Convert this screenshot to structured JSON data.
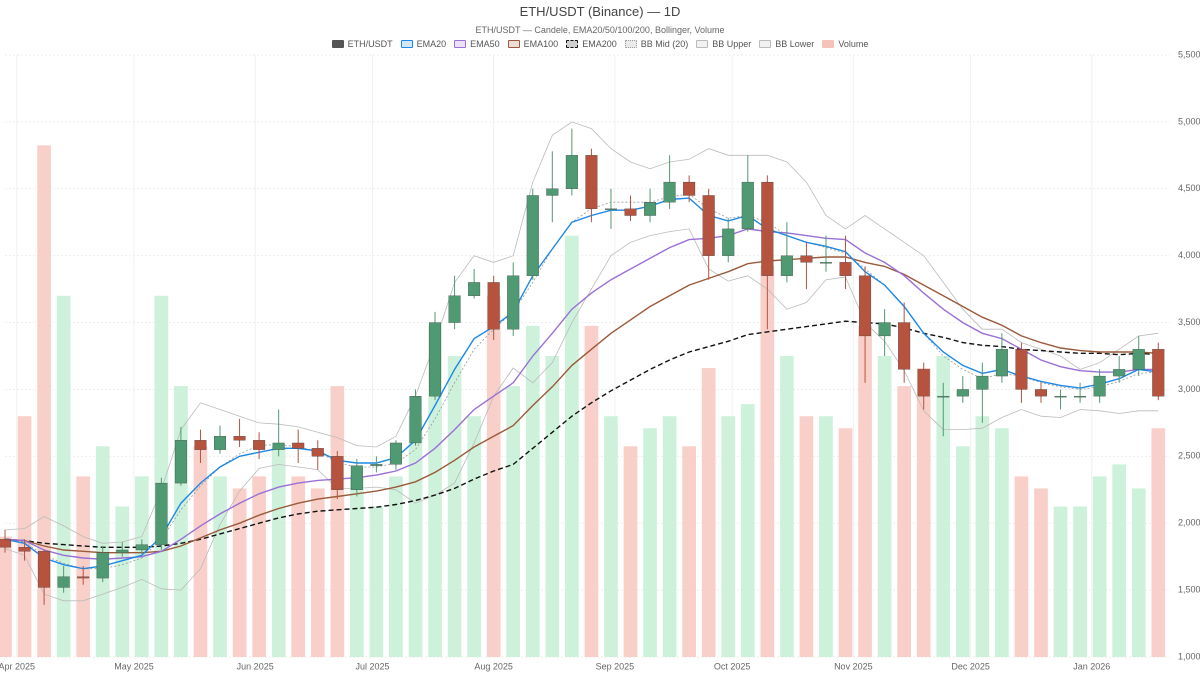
{
  "chart_data": {
    "type": "candlestick",
    "title": "ETH/USDT (Binance) — 1D",
    "subtitle": "ETH/USDT — Candele, EMA20/50/100/200, Bollinger, Volume",
    "x": [
      0,
      5,
      10,
      15,
      20,
      25,
      30,
      35,
      40,
      45,
      50,
      55,
      60,
      65,
      70,
      75,
      80,
      85,
      90,
      95,
      100,
      105,
      110,
      115,
      120,
      125,
      130,
      135,
      140,
      145,
      150,
      155,
      160,
      165,
      170,
      175,
      180,
      185,
      190,
      195,
      200,
      205,
      210,
      215,
      220,
      225,
      230,
      235,
      240,
      245,
      250,
      255,
      260,
      265,
      270,
      275,
      280,
      285,
      290,
      295
    ],
    "xlim": [
      0,
      298
    ],
    "xticks": [
      {
        "value": 3,
        "label": "Apr 2025"
      },
      {
        "value": 33,
        "label": "May 2025"
      },
      {
        "value": 64,
        "label": "Jun 2025"
      },
      {
        "value": 94,
        "label": "Jul 2025"
      },
      {
        "value": 125,
        "label": "Aug 2025"
      },
      {
        "value": 156,
        "label": "Sep 2025"
      },
      {
        "value": 186,
        "label": "Oct 2025"
      },
      {
        "value": 217,
        "label": "Nov 2025"
      },
      {
        "value": 247,
        "label": "Dec 2025"
      },
      {
        "value": 278,
        "label": "Jan 2026"
      }
    ],
    "ylim": [
      1000,
      5500
    ],
    "yticks": [
      {
        "value": 1000,
        "label": "1,000"
      },
      {
        "value": 1500,
        "label": "1,500"
      },
      {
        "value": 2000,
        "label": "2,000"
      },
      {
        "value": 2500,
        "label": "2,500"
      },
      {
        "value": 3000,
        "label": "3,000"
      },
      {
        "value": 3500,
        "label": "3,500"
      },
      {
        "value": 4000,
        "label": "4,000"
      },
      {
        "value": 4500,
        "label": "4,500"
      },
      {
        "value": 5000,
        "label": "5,000"
      },
      {
        "value": 5500,
        "label": "5,500"
      }
    ],
    "grid": true,
    "candles": {
      "name": "ETH/USDT",
      "color": "#555555",
      "up_color": "#4f9a72",
      "down_color": "#b5533f",
      "open": [
        1880,
        1820,
        1790,
        1520,
        1600,
        1590,
        1780,
        1800,
        1840,
        2300,
        2620,
        2550,
        2650,
        2620,
        2550,
        2600,
        2560,
        2500,
        2250,
        2430,
        2440,
        2600,
        2950,
        3500,
        3700,
        3800,
        3450,
        3850,
        4450,
        4500,
        4750,
        4350,
        4350,
        4300,
        4400,
        4550,
        4450,
        4000,
        4200,
        4550,
        3850,
        4000,
        3950,
        3950,
        3850,
        3400,
        3500,
        3150,
        2950,
        2950,
        3000,
        3100,
        3300,
        3000,
        2950,
        2950,
        2950,
        3100,
        3150,
        3300
      ],
      "high": [
        1950,
        1880,
        1800,
        1680,
        1680,
        1830,
        1860,
        1880,
        2340,
        2720,
        2700,
        2730,
        2780,
        2680,
        2850,
        2700,
        2620,
        2540,
        2480,
        2500,
        2620,
        3000,
        3580,
        3850,
        3900,
        3850,
        3950,
        4500,
        4780,
        4950,
        4800,
        4500,
        4450,
        4500,
        4750,
        4600,
        4500,
        4280,
        4750,
        4600,
        4250,
        4100,
        4150,
        4150,
        3920,
        3600,
        3650,
        3200,
        3050,
        3100,
        3200,
        3420,
        3350,
        3050,
        3000,
        3050,
        3150,
        3250,
        3400,
        3350
      ],
      "low": [
        1780,
        1720,
        1390,
        1480,
        1540,
        1560,
        1750,
        1770,
        1800,
        2280,
        2450,
        2520,
        2570,
        2480,
        2500,
        2450,
        2400,
        2180,
        2200,
        2380,
        2400,
        2580,
        2920,
        3450,
        3680,
        3370,
        3400,
        3820,
        4250,
        4450,
        4250,
        4200,
        4260,
        4250,
        4350,
        4400,
        3820,
        3950,
        4180,
        3450,
        3800,
        3750,
        3880,
        3750,
        3050,
        3250,
        3050,
        2850,
        2650,
        2900,
        2750,
        3050,
        2900,
        2900,
        2850,
        2900,
        2900,
        3050,
        3100,
        2920
      ],
      "close": [
        1820,
        1790,
        1520,
        1600,
        1590,
        1780,
        1800,
        1840,
        2300,
        2620,
        2550,
        2650,
        2620,
        2550,
        2600,
        2560,
        2500,
        2250,
        2430,
        2440,
        2600,
        2950,
        3500,
        3700,
        3800,
        3450,
        3850,
        4450,
        4500,
        4750,
        4350,
        4350,
        4300,
        4400,
        4550,
        4450,
        4000,
        4200,
        4550,
        3850,
        4000,
        3950,
        3950,
        3850,
        3400,
        3500,
        3150,
        2950,
        2950,
        3000,
        3100,
        3300,
        3000,
        2950,
        2950,
        2950,
        3100,
        3150,
        3300,
        2950
      ]
    },
    "series": [
      {
        "name": "EMA20",
        "color": "#1e88e5",
        "style": "solid",
        "values": [
          1880,
          1850,
          1740,
          1690,
          1660,
          1680,
          1720,
          1760,
          1900,
          2150,
          2300,
          2420,
          2500,
          2530,
          2560,
          2560,
          2540,
          2470,
          2450,
          2450,
          2490,
          2620,
          2880,
          3150,
          3380,
          3470,
          3580,
          3850,
          4050,
          4250,
          4300,
          4340,
          4340,
          4370,
          4420,
          4430,
          4300,
          4260,
          4300,
          4200,
          4150,
          4100,
          4070,
          4030,
          3880,
          3780,
          3620,
          3420,
          3280,
          3180,
          3120,
          3150,
          3100,
          3060,
          3030,
          3010,
          3040,
          3080,
          3150,
          3130
        ]
      },
      {
        "name": "EMA50",
        "color": "#9a6fd6",
        "style": "solid",
        "values": [
          1880,
          1870,
          1800,
          1760,
          1740,
          1730,
          1740,
          1750,
          1790,
          1880,
          1980,
          2070,
          2150,
          2220,
          2270,
          2300,
          2320,
          2330,
          2340,
          2360,
          2390,
          2450,
          2560,
          2700,
          2850,
          2950,
          3050,
          3250,
          3420,
          3600,
          3720,
          3820,
          3900,
          3980,
          4060,
          4120,
          4130,
          4150,
          4200,
          4180,
          4170,
          4150,
          4130,
          4120,
          4020,
          3950,
          3850,
          3720,
          3600,
          3500,
          3420,
          3380,
          3300,
          3220,
          3170,
          3140,
          3130,
          3130,
          3150,
          3150
        ]
      },
      {
        "name": "EMA100",
        "color": "#9a5a3a",
        "style": "solid",
        "values": [
          1880,
          1870,
          1830,
          1800,
          1790,
          1780,
          1780,
          1780,
          1790,
          1830,
          1890,
          1950,
          2000,
          2060,
          2110,
          2150,
          2180,
          2200,
          2220,
          2240,
          2270,
          2310,
          2380,
          2470,
          2570,
          2650,
          2730,
          2880,
          3020,
          3180,
          3300,
          3420,
          3520,
          3620,
          3700,
          3780,
          3830,
          3880,
          3940,
          3960,
          3970,
          3980,
          3990,
          3990,
          3950,
          3920,
          3860,
          3780,
          3700,
          3620,
          3540,
          3480,
          3400,
          3350,
          3310,
          3290,
          3280,
          3280,
          3280,
          3270
        ]
      },
      {
        "name": "EMA200",
        "color": "#111111",
        "style": "dashed",
        "values": [
          1880,
          1870,
          1850,
          1840,
          1830,
          1820,
          1820,
          1820,
          1830,
          1850,
          1880,
          1920,
          1960,
          2000,
          2040,
          2070,
          2090,
          2100,
          2110,
          2120,
          2140,
          2170,
          2210,
          2260,
          2330,
          2390,
          2440,
          2560,
          2680,
          2800,
          2900,
          2990,
          3070,
          3150,
          3220,
          3280,
          3320,
          3360,
          3410,
          3430,
          3450,
          3470,
          3490,
          3510,
          3500,
          3490,
          3460,
          3420,
          3390,
          3350,
          3330,
          3320,
          3300,
          3290,
          3280,
          3270,
          3270,
          3260,
          3270,
          3260
        ]
      },
      {
        "name": "BB Mid (20)",
        "color": "#999999",
        "style": "dotted",
        "values": [
          1880,
          1860,
          1760,
          1700,
          1660,
          1660,
          1690,
          1740,
          1880,
          2100,
          2280,
          2420,
          2520,
          2580,
          2590,
          2570,
          2540,
          2450,
          2420,
          2420,
          2450,
          2550,
          2780,
          3050,
          3300,
          3450,
          3580,
          3800,
          4050,
          4250,
          4350,
          4400,
          4400,
          4400,
          4440,
          4460,
          4350,
          4280,
          4300,
          4250,
          4150,
          4100,
          4060,
          4020,
          3900,
          3780,
          3620,
          3420,
          3250,
          3150,
          3080,
          3120,
          3100,
          3050,
          3020,
          3000,
          3020,
          3060,
          3120,
          3130
        ]
      },
      {
        "name": "BB Upper",
        "color": "#bbbbbb",
        "style": "solid",
        "values": [
          1950,
          1960,
          2050,
          1980,
          1900,
          1850,
          1860,
          1900,
          2250,
          2700,
          2900,
          2850,
          2800,
          2750,
          2740,
          2720,
          2680,
          2640,
          2580,
          2570,
          2650,
          2950,
          3350,
          3800,
          4000,
          3950,
          4000,
          4550,
          4900,
          5000,
          4950,
          4800,
          4700,
          4650,
          4700,
          4720,
          4800,
          4750,
          4750,
          4750,
          4700,
          4550,
          4300,
          4200,
          4300,
          4200,
          4100,
          4000,
          3800,
          3600,
          3450,
          3450,
          3350,
          3300,
          3250,
          3150,
          3200,
          3300,
          3400,
          3420
        ]
      },
      {
        "name": "BB Lower",
        "color": "#bbbbbb",
        "style": "solid",
        "values": [
          1810,
          1760,
          1470,
          1420,
          1420,
          1470,
          1520,
          1580,
          1510,
          1500,
          1660,
          1990,
          2240,
          2410,
          2440,
          2420,
          2400,
          2260,
          2260,
          2270,
          2250,
          2150,
          2210,
          2300,
          2600,
          2950,
          3160,
          3050,
          3200,
          3500,
          3750,
          4000,
          4100,
          4150,
          4180,
          4200,
          3900,
          3810,
          3850,
          3750,
          3600,
          3650,
          3820,
          3840,
          3500,
          3360,
          3140,
          2840,
          2700,
          2700,
          2710,
          2790,
          2850,
          2800,
          2790,
          2850,
          2840,
          2820,
          2840,
          2840
        ]
      }
    ],
    "volume": {
      "name": "Volume",
      "color": "#f6c3bb",
      "up_color": "#c6eed6",
      "down_color": "#f8c8c0",
      "values": [
        20,
        40,
        85,
        60,
        30,
        35,
        25,
        30,
        60,
        45,
        35,
        30,
        28,
        30,
        35,
        30,
        28,
        45,
        30,
        25,
        30,
        40,
        55,
        50,
        40,
        60,
        45,
        55,
        50,
        70,
        55,
        40,
        35,
        38,
        40,
        35,
        48,
        40,
        42,
        65,
        50,
        40,
        40,
        38,
        55,
        50,
        45,
        48,
        50,
        35,
        40,
        38,
        30,
        28,
        25,
        25,
        30,
        32,
        28,
        38
      ]
    }
  }
}
